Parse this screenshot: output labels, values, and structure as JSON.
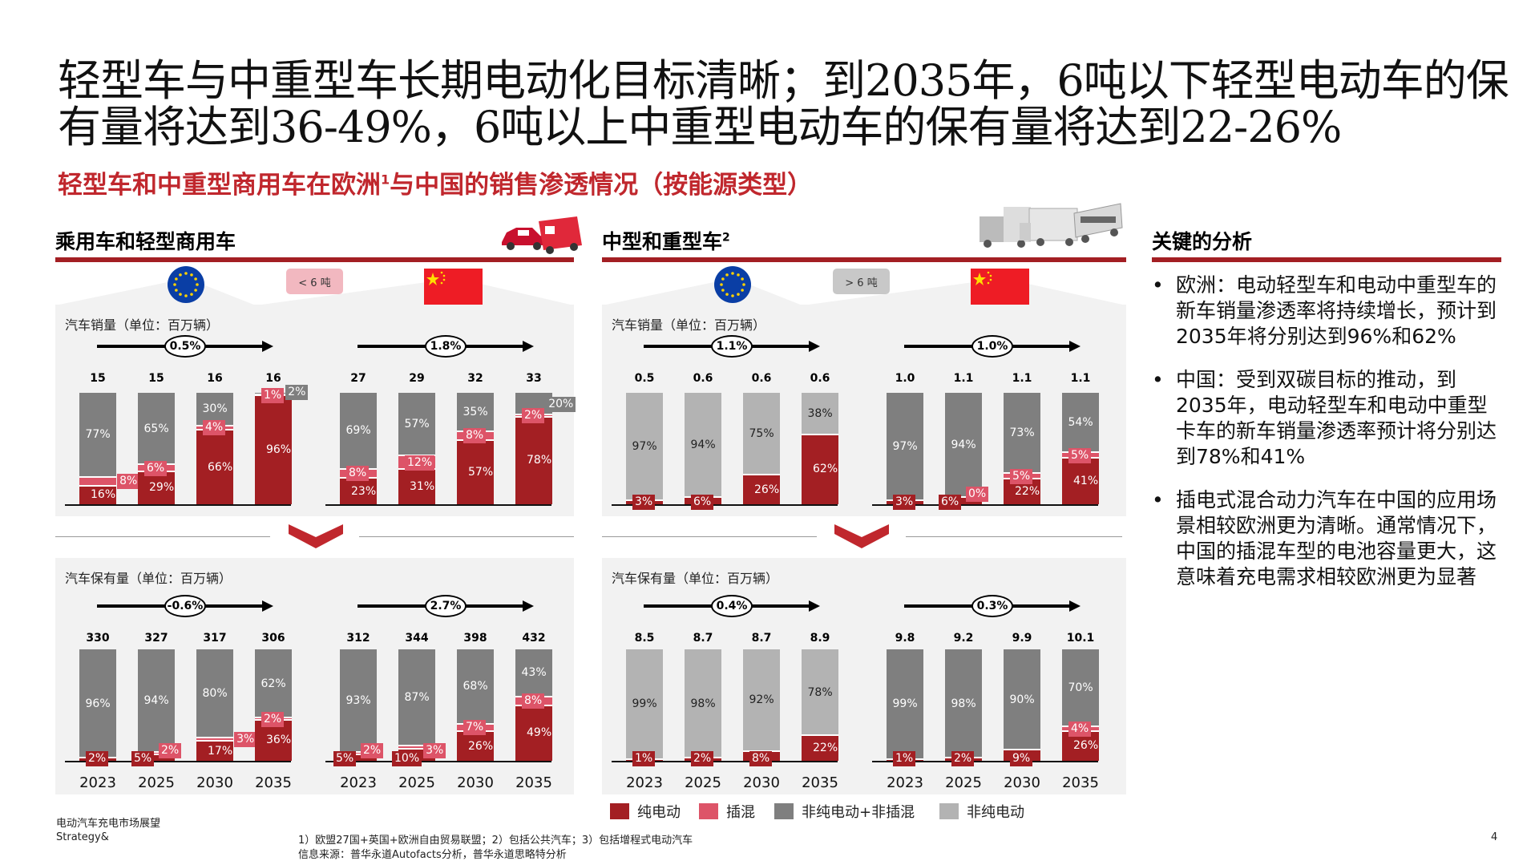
{
  "title": "轻型车与中重型车长期电动化目标清晰；到2035年，6吨以下轻型电动车的保有量将达到36-49%，6吨以上中重型电动车的保有量将达到22-26%",
  "subtitle": {
    "text": "轻型车和中重型商用车在欧洲",
    "sup": "1",
    "text2": "与中国的销售渗透情况（按能源类型）"
  },
  "sections": {
    "light": {
      "title": "乘用车和轻型商用车",
      "badge": "< 6 吨"
    },
    "heavy": {
      "title": "中型和重型车",
      "sup": "2",
      "badge": "> 6 吨"
    },
    "analysis": {
      "title": "关键的分析"
    }
  },
  "panel_labels": {
    "sales": "汽车销量（单位：百万辆）",
    "stock": "汽车保有量（单位：百万辆）"
  },
  "colors": {
    "bev": "#a31f23",
    "phev": "#dd5468",
    "other_dark": "#7f7f7f",
    "other_light": "#b3b3b3",
    "accent": "#c0272d"
  },
  "legend": [
    {
      "label": "纯电动",
      "color": "#a31f23"
    },
    {
      "label": "插混",
      "color": "#dd5468"
    },
    {
      "label": "非纯电动+非插混",
      "color": "#7f7f7f"
    },
    {
      "label": "非纯电动",
      "color": "#b3b3b3"
    }
  ],
  "analysis": [
    "欧洲：电动轻型车和电动中重型车的新车销量渗透率将持续增长，预计到2035年将分别达到96%和62%",
    "中国：受到双碳目标的推动，到2035年，电动轻型车和电动中重型卡车的新车销量渗透率预计将分别达到78%和41%",
    "插电式混合动力汽车在中国的应用场景相较欧洲更为清晰。通常情况下，中国的插混车型的电池容量更大，这意味着充电需求相较欧洲更为显著"
  ],
  "chart_data": [
    {
      "id": "light-sales-eu",
      "type": "bar",
      "stacked": true,
      "region": "欧洲",
      "categories": [
        "2023",
        "2025",
        "2030",
        "2035"
      ],
      "growth": "0.5%",
      "totals": [
        "15",
        "15",
        "16",
        "16"
      ],
      "bev": [
        16,
        29,
        66,
        96
      ],
      "phev": [
        8,
        6,
        4,
        1
      ],
      "other": [
        77,
        65,
        30,
        2
      ],
      "other_type": "dark"
    },
    {
      "id": "light-sales-cn",
      "type": "bar",
      "stacked": true,
      "region": "中国",
      "categories": [
        "2023",
        "2025",
        "2030",
        "2035"
      ],
      "growth": "1.8%",
      "totals": [
        "27",
        "29",
        "32",
        "33"
      ],
      "bev": [
        23,
        31,
        57,
        78
      ],
      "phev": [
        8,
        12,
        8,
        2
      ],
      "other": [
        69,
        57,
        35,
        20
      ],
      "other_type": "dark"
    },
    {
      "id": "light-stock-eu",
      "type": "bar",
      "stacked": true,
      "region": "欧洲",
      "categories": [
        "2023",
        "2025",
        "2030",
        "2035"
      ],
      "growth": "-0.6%",
      "totals": [
        "330",
        "327",
        "317",
        "306"
      ],
      "bev": [
        2,
        5,
        17,
        36
      ],
      "phev": [
        null,
        2,
        3,
        2
      ],
      "other": [
        96,
        94,
        80,
        62
      ],
      "other_type": "dark"
    },
    {
      "id": "light-stock-cn",
      "type": "bar",
      "stacked": true,
      "region": "中国",
      "categories": [
        "2023",
        "2025",
        "2030",
        "2035"
      ],
      "growth": "2.7%",
      "totals": [
        "312",
        "344",
        "398",
        "432"
      ],
      "bev": [
        5,
        10,
        26,
        49
      ],
      "phev": [
        2,
        3,
        7,
        8
      ],
      "other": [
        93,
        87,
        68,
        43
      ],
      "other_type": "dark"
    },
    {
      "id": "heavy-sales-eu",
      "type": "bar",
      "stacked": true,
      "region": "欧洲",
      "categories": [
        "2023",
        "2025",
        "2030",
        "2035"
      ],
      "growth": "1.1%",
      "totals": [
        "0.5",
        "0.6",
        "0.6",
        "0.6"
      ],
      "bev": [
        3,
        6,
        26,
        62
      ],
      "phev": [
        null,
        null,
        null,
        null
      ],
      "other": [
        97,
        94,
        75,
        38
      ],
      "other_type": "light"
    },
    {
      "id": "heavy-sales-cn",
      "type": "bar",
      "stacked": true,
      "region": "中国",
      "categories": [
        "2023",
        "2025",
        "2030",
        "2035"
      ],
      "growth": "1.0%",
      "totals": [
        "1.0",
        "1.1",
        "1.1",
        "1.1"
      ],
      "bev": [
        3,
        6,
        22,
        41
      ],
      "phev": [
        null,
        0,
        5,
        5
      ],
      "other": [
        97,
        94,
        73,
        54
      ],
      "other_type": "dark"
    },
    {
      "id": "heavy-stock-eu",
      "type": "bar",
      "stacked": true,
      "region": "欧洲",
      "categories": [
        "2023",
        "2025",
        "2030",
        "2035"
      ],
      "growth": "0.4%",
      "totals": [
        "8.5",
        "8.7",
        "8.7",
        "8.9"
      ],
      "bev": [
        1,
        2,
        8,
        22
      ],
      "phev": [
        null,
        null,
        null,
        null
      ],
      "other": [
        99,
        98,
        92,
        78
      ],
      "other_type": "light"
    },
    {
      "id": "heavy-stock-cn",
      "type": "bar",
      "stacked": true,
      "region": "中国",
      "categories": [
        "2023",
        "2025",
        "2030",
        "2035"
      ],
      "growth": "0.3%",
      "totals": [
        "9.8",
        "9.2",
        "9.9",
        "10.1"
      ],
      "bev": [
        1,
        2,
        9,
        26
      ],
      "phev": [
        null,
        null,
        null,
        4
      ],
      "other": [
        99,
        98,
        90,
        70
      ],
      "other_type": "dark"
    }
  ],
  "footer": {
    "report": "电动汽车充电市场展望",
    "brand": "Strategy&",
    "notes": "1）欧盟27国+英国+欧洲自由贸易联盟；2）包括公共汽车；3）包括增程式电动汽车",
    "source": "信息来源：普华永道Autofacts分析，普华永道思略特分析",
    "page": "4"
  }
}
